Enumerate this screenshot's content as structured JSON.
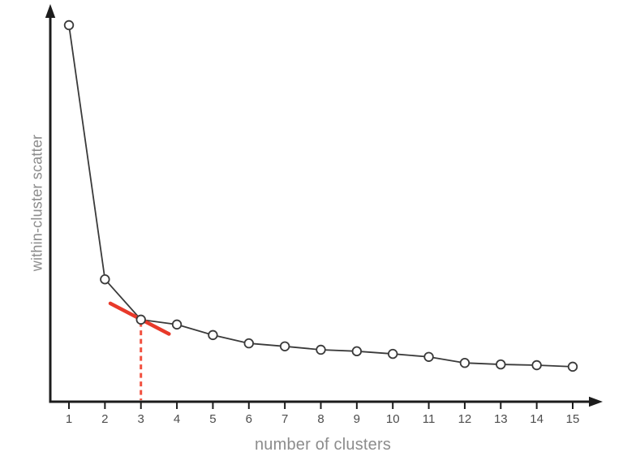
{
  "figure": {
    "background": "#ffffff"
  },
  "chart_data": {
    "type": "line",
    "title": "",
    "xlabel": "number of clusters",
    "ylabel": "within-cluster scatter",
    "x": [
      1,
      2,
      3,
      4,
      5,
      6,
      7,
      8,
      9,
      10,
      11,
      12,
      13,
      14,
      15
    ],
    "x_tick_labels": [
      "1",
      "2",
      "3",
      "4",
      "5",
      "6",
      "7",
      "8",
      "9",
      "10",
      "11",
      "12",
      "13",
      "14",
      "15"
    ],
    "values": [
      1.0,
      0.325,
      0.218,
      0.205,
      0.177,
      0.155,
      0.147,
      0.138,
      0.134,
      0.127,
      0.119,
      0.103,
      0.099,
      0.097,
      0.093
    ],
    "xlim": [
      0.5,
      15.8
    ],
    "ylim": [
      0,
      1.05
    ],
    "grid": false,
    "y_ticks_shown": false,
    "legend": "none",
    "marker": "open-circle",
    "line_color": "#3a3a3a",
    "marker_fill": "#ffffff",
    "axis_color": "#1c1c1c",
    "tick_label_color": "#4d4d4d",
    "axis_label_color": "#8c8c8c",
    "annotations": {
      "elbow_x": 3,
      "tangent_line": {
        "x1": 2.15,
        "v1": 0.261,
        "x2": 3.78,
        "v2": 0.18,
        "color": "#e8392a"
      },
      "dashed_drop_line": {
        "x": 3,
        "v_from": 0.212,
        "v_to": 0.004,
        "color": "#f2503f",
        "style": "dashed"
      }
    }
  }
}
